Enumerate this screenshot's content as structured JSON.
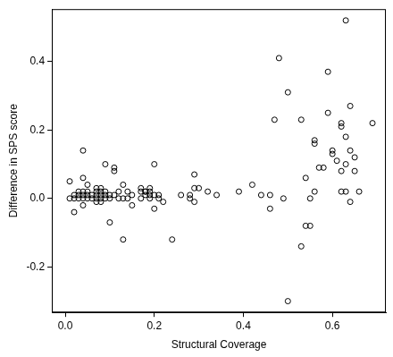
{
  "chart_data": {
    "type": "scatter",
    "x_label": "Structural Coverage",
    "y_label": "Difference in SPS score",
    "color": "#000000",
    "marker": "open circle",
    "grid": false,
    "xlim": [
      -0.03,
      0.72
    ],
    "ylim": [
      -0.333,
      0.553
    ],
    "xticks": [
      {
        "value": 0,
        "label": "0.0"
      },
      0.2,
      0.4,
      0.6
    ],
    "yticks": [
      -0.2,
      {
        "value": 0,
        "label": "0.0"
      },
      0.2,
      0.4
    ],
    "x": [
      0.01,
      0.01,
      0.02,
      0.02,
      0.02,
      0.03,
      0.03,
      0.03,
      0.04,
      0.04,
      0.04,
      0.04,
      0.04,
      0.04,
      0.05,
      0.05,
      0.05,
      0.05,
      0.06,
      0.06,
      0.07,
      0.07,
      0.07,
      0.07,
      0.07,
      0.08,
      0.08,
      0.08,
      0.08,
      0.08,
      0.09,
      0.09,
      0.09,
      0.09,
      0.1,
      0.1,
      0.1,
      0.11,
      0.11,
      0.11,
      0.12,
      0.12,
      0.13,
      0.13,
      0.13,
      0.14,
      0.14,
      0.15,
      0.15,
      0.17,
      0.17,
      0.17,
      0.18,
      0.18,
      0.18,
      0.19,
      0.19,
      0.19,
      0.19,
      0.2,
      0.2,
      0.2,
      0.21,
      0.21,
      0.22,
      0.24,
      0.26,
      0.28,
      0.28,
      0.29,
      0.29,
      0.29,
      0.3,
      0.32,
      0.34,
      0.39,
      0.42,
      0.44,
      0.46,
      0.46,
      0.47,
      0.48,
      0.49,
      0.5,
      0.5,
      0.53,
      0.53,
      0.54,
      0.54,
      0.55,
      0.55,
      0.56,
      0.56,
      0.56,
      0.57,
      0.58,
      0.59,
      0.59,
      0.6,
      0.6,
      0.61,
      0.62,
      0.62,
      0.62,
      0.62,
      0.63,
      0.63,
      0.63,
      0.63,
      0.64,
      0.64,
      0.64,
      0.65,
      0.65,
      0.66,
      0.69
    ],
    "values": [
      0,
      0.05,
      -0.04,
      0,
      0.01,
      0,
      0.01,
      0.02,
      0.14,
      0.06,
      0.02,
      0.01,
      0,
      -0.02,
      0.04,
      0.02,
      0.01,
      0,
      0.01,
      0,
      0.03,
      0.02,
      0.01,
      0,
      -0.01,
      0.03,
      0.02,
      0.01,
      0,
      -0.01,
      0.1,
      0.02,
      0.01,
      0,
      -0.07,
      0.01,
      0,
      0.09,
      0.08,
      0.01,
      0,
      0.02,
      0.04,
      0,
      -0.12,
      0.02,
      0,
      -0.02,
      0.01,
      0.03,
      0,
      0.02,
      0.01,
      0.02,
      0.02,
      0.03,
      0,
      0.02,
      0.01,
      0.1,
      0.01,
      -0.03,
      0,
      0.01,
      -0.01,
      -0.12,
      0.01,
      0,
      0.01,
      0.07,
      0.03,
      -0.01,
      0.03,
      0.02,
      0.01,
      0.02,
      0.04,
      0.01,
      0.01,
      -0.03,
      0.23,
      0.41,
      0,
      0.31,
      -0.3,
      0.23,
      -0.14,
      0.06,
      -0.08,
      0,
      -0.08,
      0.17,
      0.16,
      0.02,
      0.09,
      0.09,
      0.37,
      0.25,
      0.14,
      0.13,
      0.11,
      0.22,
      0.21,
      0.08,
      0.02,
      0.52,
      0.18,
      0.1,
      0.02,
      0.27,
      0.14,
      -0.01,
      0.12,
      0.08,
      0.02,
      0.22
    ]
  }
}
